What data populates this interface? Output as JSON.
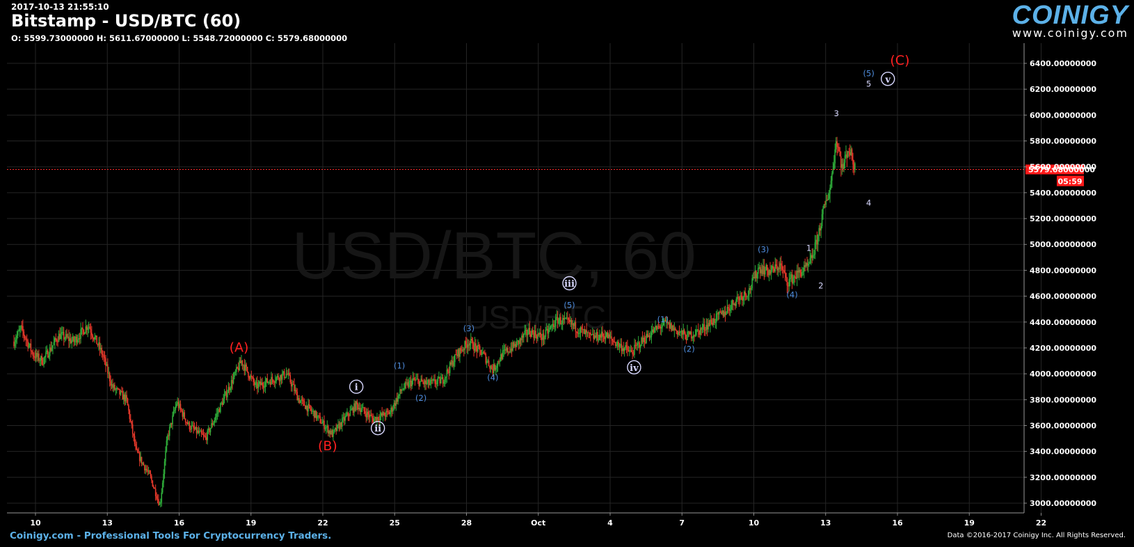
{
  "header": {
    "timestamp": "2017-10-13 21:55:10",
    "title": "Bitstamp - USD/BTC (60)",
    "ohlc": "O: 5599.73000000 H: 5611.67000000 L: 5548.72000000 C: 5579.68000000"
  },
  "logo": {
    "word": "COINIGY",
    "url": "www.coinigy.com"
  },
  "footer": {
    "left": "Coinigy.com - Professional Tools For Cryptocurrency Traders.",
    "right": "Data ©2016-2017 Coinigy Inc. All Rights Reserved."
  },
  "watermark": {
    "big": "USD/BTC, 60",
    "small": "USD/BTC"
  },
  "colors": {
    "bg": "#000000",
    "up": "#2fae3a",
    "down": "#e8392b",
    "grid": "#252525",
    "price_line": "#ff2a2a",
    "wave_blue": "#4f8ee0",
    "wave_red": "#ff2020",
    "wave_white": "#d8d8ff"
  },
  "chart_data": {
    "type": "candlestick",
    "title": "Bitstamp - USD/BTC (60)",
    "ylim": [
      2950,
      6500
    ],
    "y_ticks": [
      "6400.00000000",
      "6200.00000000",
      "6000.00000000",
      "5800.00000000",
      "5600.00000000",
      "5400.00000000",
      "5200.00000000",
      "5000.00000000",
      "4800.00000000",
      "4600.00000000",
      "4400.00000000",
      "4200.00000000",
      "4000.00000000",
      "3800.00000000",
      "3600.00000000",
      "3400.00000000",
      "3200.00000000",
      "3000.00000000"
    ],
    "x_ticks": [
      "10",
      "13",
      "16",
      "19",
      "22",
      "25",
      "28",
      "Oct",
      "4",
      "7",
      "10",
      "13",
      "16",
      "19",
      "22"
    ],
    "last_price": "5579.68000000",
    "countdown": "05:59",
    "price_path": [
      {
        "t": 9.1,
        "p": 4250
      },
      {
        "t": 9.4,
        "p": 4350
      },
      {
        "t": 9.9,
        "p": 4150
      },
      {
        "t": 10.3,
        "p": 4100
      },
      {
        "t": 11.0,
        "p": 4300
      },
      {
        "t": 11.6,
        "p": 4250
      },
      {
        "t": 12.2,
        "p": 4380
      },
      {
        "t": 12.8,
        "p": 4150
      },
      {
        "t": 13.2,
        "p": 3900
      },
      {
        "t": 13.8,
        "p": 3800
      },
      {
        "t": 14.2,
        "p": 3400
      },
      {
        "t": 14.8,
        "p": 3200
      },
      {
        "t": 15.2,
        "p": 2980
      },
      {
        "t": 15.5,
        "p": 3500
      },
      {
        "t": 15.9,
        "p": 3780
      },
      {
        "t": 16.4,
        "p": 3600
      },
      {
        "t": 17.1,
        "p": 3500
      },
      {
        "t": 17.6,
        "p": 3700
      },
      {
        "t": 18.1,
        "p": 3900
      },
      {
        "t": 18.6,
        "p": 4100
      },
      {
        "t": 19.2,
        "p": 3900
      },
      {
        "t": 19.8,
        "p": 3950
      },
      {
        "t": 20.5,
        "p": 4000
      },
      {
        "t": 21.0,
        "p": 3800
      },
      {
        "t": 21.6,
        "p": 3700
      },
      {
        "t": 22.4,
        "p": 3530
      },
      {
        "t": 22.9,
        "p": 3650
      },
      {
        "t": 23.4,
        "p": 3760
      },
      {
        "t": 24.1,
        "p": 3650
      },
      {
        "t": 24.8,
        "p": 3700
      },
      {
        "t": 25.3,
        "p": 3880
      },
      {
        "t": 25.8,
        "p": 3950
      },
      {
        "t": 26.4,
        "p": 3920
      },
      {
        "t": 27.0,
        "p": 3950
      },
      {
        "t": 27.6,
        "p": 4150
      },
      {
        "t": 28.1,
        "p": 4250
      },
      {
        "t": 28.7,
        "p": 4150
      },
      {
        "t": 29.1,
        "p": 4030
      },
      {
        "t": 29.5,
        "p": 4150
      },
      {
        "t": 30.1,
        "p": 4230
      },
      {
        "t": 30.6,
        "p": 4330
      },
      {
        "t": 31.2,
        "p": 4280
      },
      {
        "t": 31.8,
        "p": 4420
      },
      {
        "t": 32.3,
        "p": 4390
      },
      {
        "t": 32.8,
        "p": 4330
      },
      {
        "t": 33.2,
        "p": 4280
      },
      {
        "t": 33.8,
        "p": 4300
      },
      {
        "t": 34.3,
        "p": 4230
      },
      {
        "t": 34.9,
        "p": 4160
      },
      {
        "t": 35.2,
        "p": 4230
      },
      {
        "t": 35.8,
        "p": 4330
      },
      {
        "t": 36.3,
        "p": 4390
      },
      {
        "t": 36.8,
        "p": 4330
      },
      {
        "t": 37.2,
        "p": 4290
      },
      {
        "t": 37.7,
        "p": 4330
      },
      {
        "t": 38.3,
        "p": 4410
      },
      {
        "t": 38.8,
        "p": 4480
      },
      {
        "t": 39.3,
        "p": 4580
      },
      {
        "t": 39.8,
        "p": 4640
      },
      {
        "t": 40.2,
        "p": 4820
      },
      {
        "t": 40.7,
        "p": 4790
      },
      {
        "t": 41.1,
        "p": 4840
      },
      {
        "t": 41.4,
        "p": 4710
      },
      {
        "t": 41.9,
        "p": 4780
      },
      {
        "t": 42.3,
        "p": 4830
      },
      {
        "t": 42.6,
        "p": 5000
      },
      {
        "t": 42.9,
        "p": 5250
      },
      {
        "t": 43.2,
        "p": 5450
      },
      {
        "t": 43.45,
        "p": 5820
      },
      {
        "t": 43.7,
        "p": 5580
      },
      {
        "t": 43.95,
        "p": 5750
      },
      {
        "t": 44.25,
        "p": 5580
      }
    ],
    "waves": [
      {
        "label": "(A)",
        "t": 18.5,
        "p": 4170,
        "style": "red"
      },
      {
        "label": "(B)",
        "t": 22.2,
        "p": 3410,
        "style": "red"
      },
      {
        "label": "(C)",
        "t": 46.1,
        "p": 6390,
        "style": "red"
      },
      {
        "label": "i",
        "t": 23.4,
        "p": 3900,
        "style": "circle"
      },
      {
        "label": "ii",
        "t": 24.3,
        "p": 3580,
        "style": "circle"
      },
      {
        "label": "iii",
        "t": 32.3,
        "p": 4700,
        "style": "circle"
      },
      {
        "label": "iv",
        "t": 35.0,
        "p": 4050,
        "style": "circle"
      },
      {
        "label": "v",
        "t": 45.6,
        "p": 6280,
        "style": "circle"
      },
      {
        "label": "(1)",
        "t": 25.2,
        "p": 4040,
        "style": "blue"
      },
      {
        "label": "(2)",
        "t": 26.1,
        "p": 3790,
        "style": "blue"
      },
      {
        "label": "(3)",
        "t": 28.1,
        "p": 4330,
        "style": "blue"
      },
      {
        "label": "(4)",
        "t": 29.1,
        "p": 3950,
        "style": "blue"
      },
      {
        "label": "(5)",
        "t": 32.3,
        "p": 4510,
        "style": "blue"
      },
      {
        "label": "(1)",
        "t": 36.2,
        "p": 4400,
        "style": "blue"
      },
      {
        "label": "(2)",
        "t": 37.3,
        "p": 4170,
        "style": "blue"
      },
      {
        "label": "(3)",
        "t": 40.4,
        "p": 4940,
        "style": "blue"
      },
      {
        "label": "(4)",
        "t": 41.6,
        "p": 4590,
        "style": "blue"
      },
      {
        "label": "(5)",
        "t": 44.8,
        "p": 6300,
        "style": "blue"
      },
      {
        "label": "1",
        "t": 42.3,
        "p": 4950,
        "style": "white"
      },
      {
        "label": "2",
        "t": 42.8,
        "p": 4660,
        "style": "white"
      },
      {
        "label": "3",
        "t": 43.45,
        "p": 5990,
        "style": "white"
      },
      {
        "label": "4",
        "t": 44.8,
        "p": 5300,
        "style": "white"
      },
      {
        "label": "5",
        "t": 44.8,
        "p": 6220,
        "style": "white"
      }
    ]
  }
}
